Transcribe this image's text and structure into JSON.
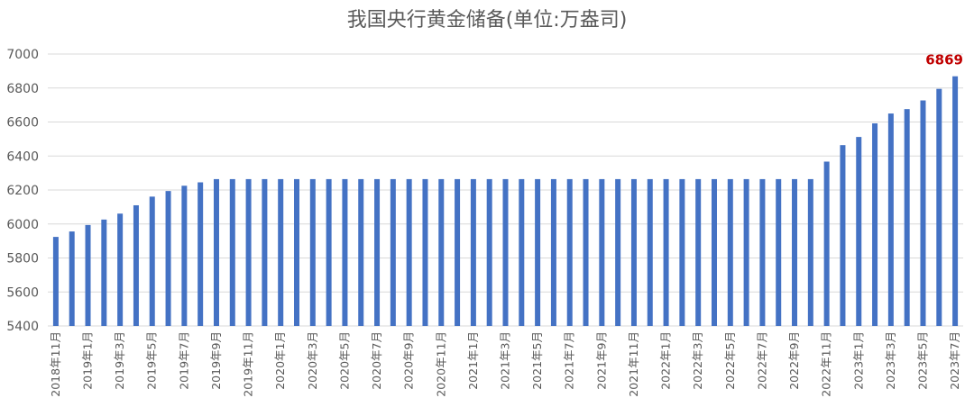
{
  "chart_data": {
    "type": "bar",
    "title": "我国央行黄金储备(单位:万盎司)",
    "xlabel": "",
    "ylabel": "",
    "ylim": [
      5400,
      7000
    ],
    "yticks": [
      5400,
      5600,
      5800,
      6000,
      6200,
      6400,
      6600,
      6800,
      7000
    ],
    "grid": true,
    "legend": "none",
    "bar_color": "#4472c4",
    "categories": [
      "2018年11月",
      "2018年12月",
      "2019年1月",
      "2019年2月",
      "2019年3月",
      "2019年4月",
      "2019年5月",
      "2019年6月",
      "2019年7月",
      "2019年8月",
      "2019年9月",
      "2019年10月",
      "2019年11月",
      "2019年12月",
      "2020年1月",
      "2020年2月",
      "2020年3月",
      "2020年4月",
      "2020年5月",
      "2020年6月",
      "2020年7月",
      "2020年8月",
      "2020年9月",
      "2020年10月",
      "2020年11月",
      "2020年12月",
      "2021年1月",
      "2021年2月",
      "2021年3月",
      "2021年4月",
      "2021年5月",
      "2021年6月",
      "2021年7月",
      "2021年8月",
      "2021年9月",
      "2021年10月",
      "2021年11月",
      "2021年12月",
      "2022年1月",
      "2022年2月",
      "2022年3月",
      "2022年4月",
      "2022年5月",
      "2022年6月",
      "2022年7月",
      "2022年8月",
      "2022年9月",
      "2022年10月",
      "2022年11月",
      "2022年12月",
      "2023年1月",
      "2023年2月",
      "2023年3月",
      "2023年4月",
      "2023年5月",
      "2023年6月",
      "2023年7月"
    ],
    "shown_tick_labels": [
      "2018年11月",
      "2019年1月",
      "2019年3月",
      "2019年5月",
      "2019年7月",
      "2019年9月",
      "2019年11月",
      "2020年1月",
      "2020年3月",
      "2020年5月",
      "2020年7月",
      "2020年9月",
      "2020年11月",
      "2021年1月",
      "2021年3月",
      "2021年5月",
      "2021年7月",
      "2021年9月",
      "2021年11月",
      "2022年1月",
      "2022年3月",
      "2022年5月",
      "2022年7月",
      "2022年9月",
      "2022年11月",
      "2023年1月",
      "2023年3月",
      "2023年5月",
      "2023年7月"
    ],
    "values": [
      5924,
      5956,
      5994,
      6026,
      6061,
      6110,
      6161,
      6194,
      6225,
      6245,
      6264,
      6264,
      6264,
      6264,
      6264,
      6264,
      6264,
      6264,
      6264,
      6264,
      6264,
      6264,
      6264,
      6264,
      6264,
      6264,
      6264,
      6264,
      6264,
      6264,
      6264,
      6264,
      6264,
      6264,
      6264,
      6264,
      6264,
      6264,
      6264,
      6264,
      6264,
      6264,
      6264,
      6264,
      6264,
      6264,
      6264,
      6264,
      6367,
      6464,
      6512,
      6592,
      6650,
      6676,
      6727,
      6795,
      6869
    ],
    "data_labels": [
      {
        "category": "2023年7月",
        "text": "6869",
        "color": "#c00000"
      }
    ]
  }
}
